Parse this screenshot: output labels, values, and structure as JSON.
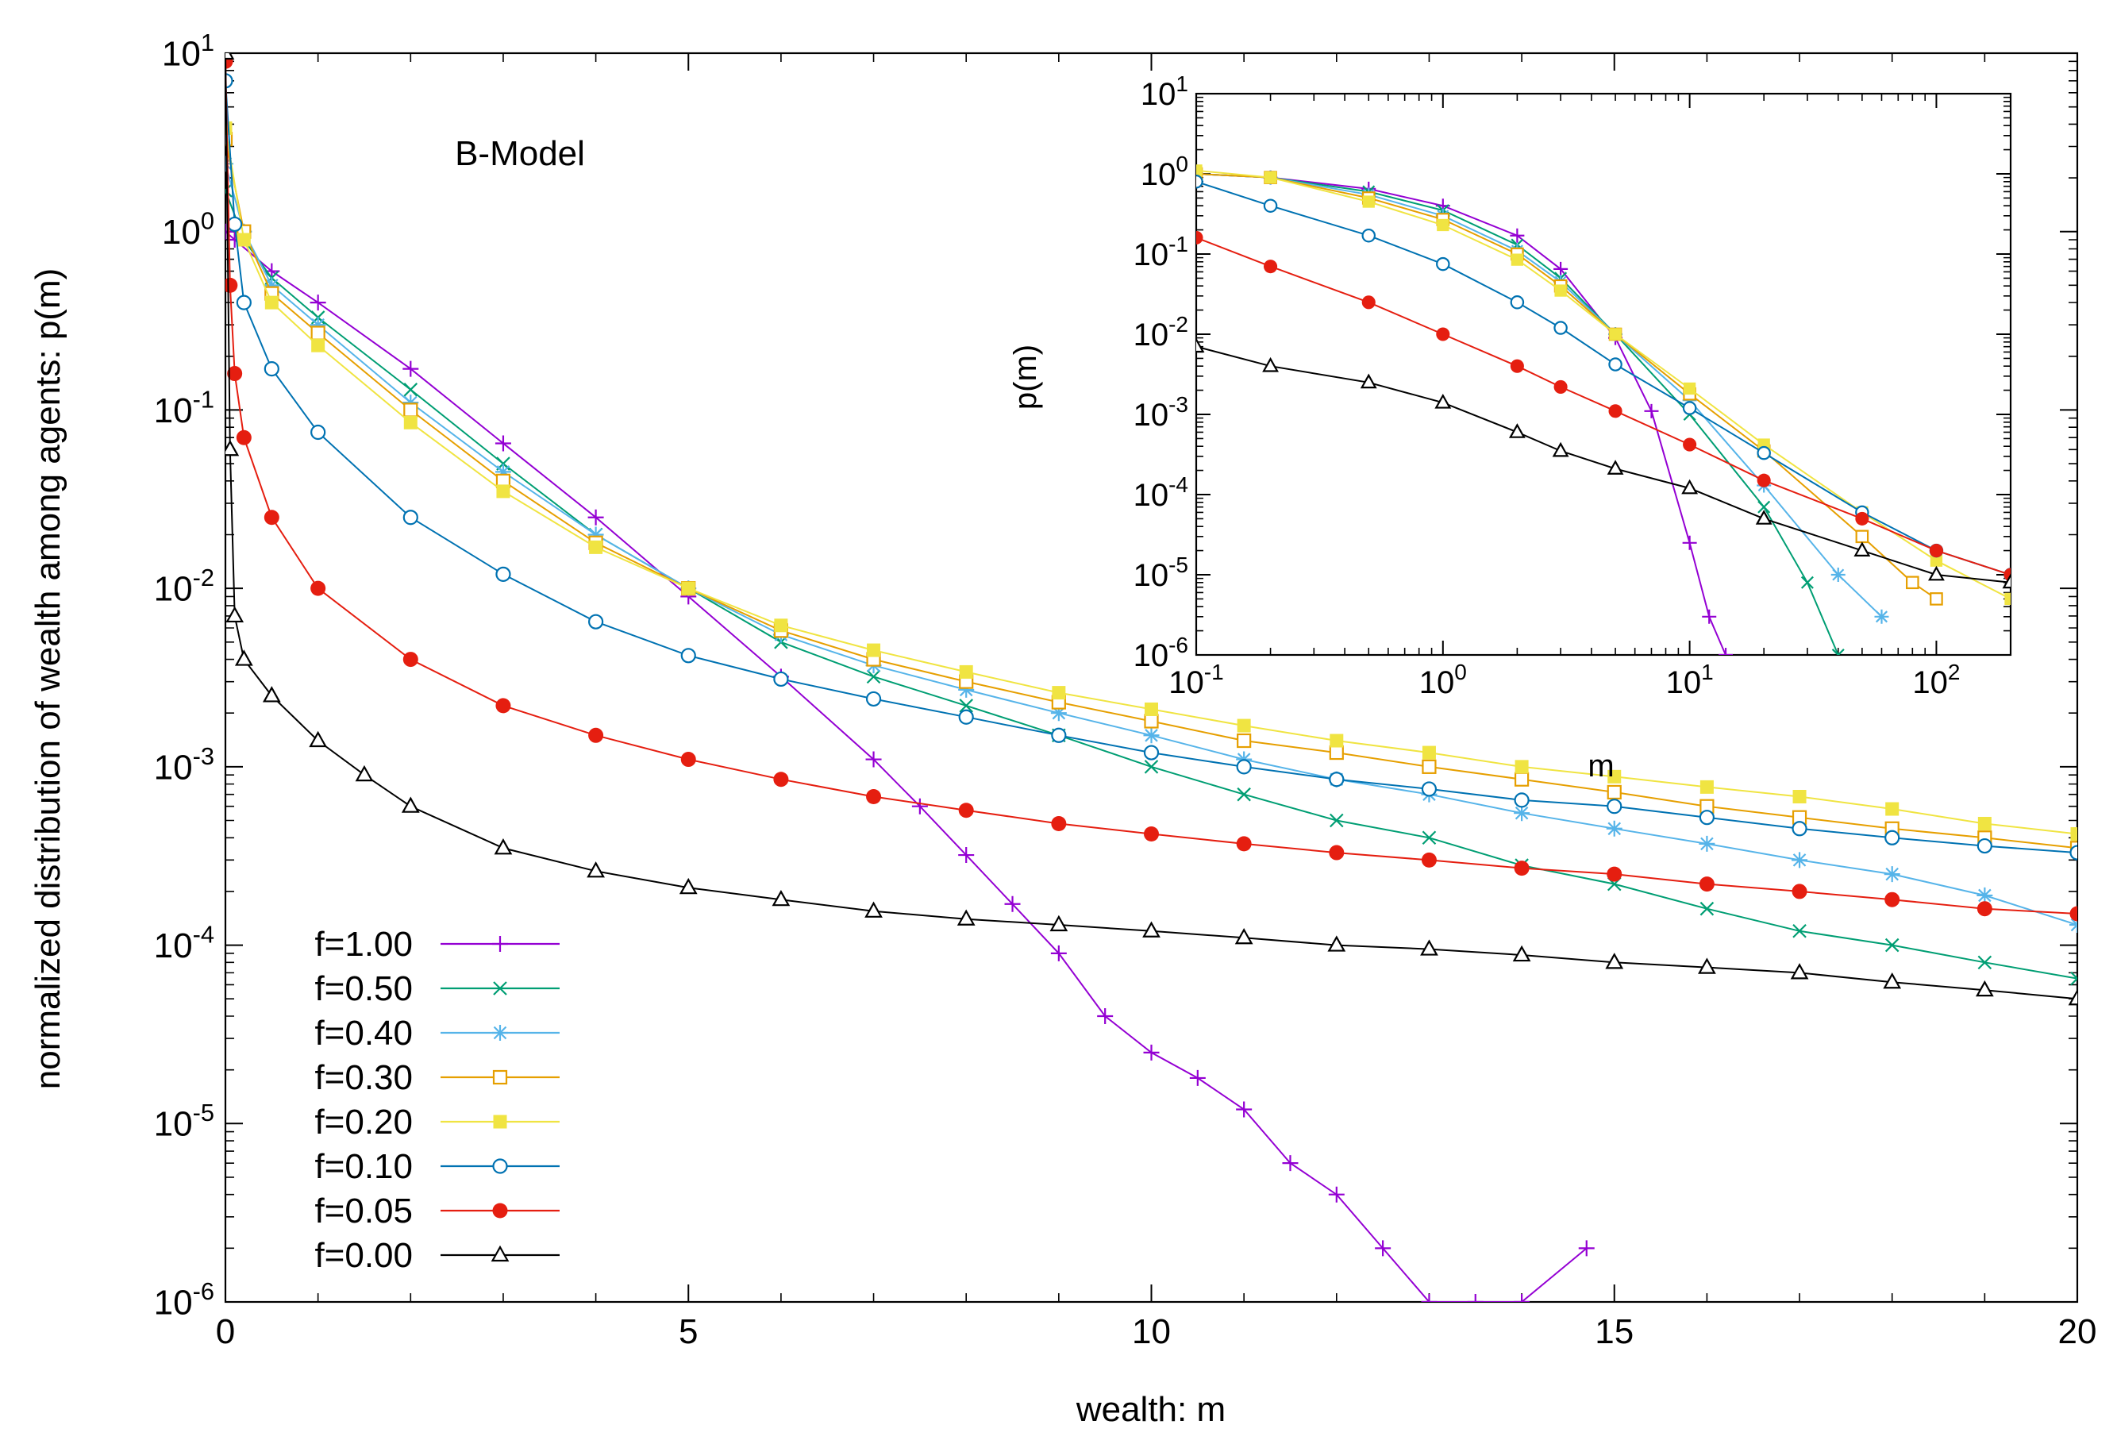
{
  "chart_data": [
    {
      "type": "line",
      "title": "",
      "annotation": "B-Model",
      "xlabel": "wealth: m",
      "ylabel": "normalized distribution of wealth among agents: p(m)",
      "xscale": "linear",
      "yscale": "log",
      "xlim": [
        0,
        20
      ],
      "ylim": [
        1e-06,
        10
      ],
      "xticks": [
        "0",
        "5",
        "10",
        "15",
        "20"
      ],
      "yticks": [
        {
          "base": "10",
          "exp": "-6"
        },
        {
          "base": "10",
          "exp": "-5"
        },
        {
          "base": "10",
          "exp": "-4"
        },
        {
          "base": "10",
          "exp": "-3"
        },
        {
          "base": "10",
          "exp": "-2"
        },
        {
          "base": "10",
          "exp": "-1"
        },
        {
          "base": "10",
          "exp": "0"
        },
        {
          "base": "10",
          "exp": "1"
        }
      ],
      "grid": false,
      "legend_position": "bottom-left",
      "series": [
        {
          "name": "f=1.00",
          "color": "#9400d3",
          "marker": "plus",
          "x": [
            0,
            0.1,
            0.5,
            1,
            2,
            3,
            4,
            5,
            6,
            7,
            7.5,
            8,
            8.5,
            9,
            9.5,
            10,
            10.5,
            11,
            11.5,
            12,
            12.5,
            13,
            13.5,
            14,
            14.7
          ],
          "y": [
            1.0,
            0.9,
            0.6,
            0.4,
            0.17,
            0.065,
            0.025,
            0.009,
            0.0032,
            0.0011,
            0.0006,
            0.00032,
            0.00017,
            9e-05,
            4e-05,
            2.5e-05,
            1.8e-05,
            1.2e-05,
            6e-06,
            4e-06,
            2e-06,
            1e-06,
            1e-06,
            1e-06,
            2e-06
          ]
        },
        {
          "name": "f=0.50",
          "color": "#009e73",
          "marker": "x",
          "x": [
            0,
            0.2,
            0.5,
            1,
            2,
            3,
            4,
            5,
            6,
            7,
            8,
            9,
            10,
            11,
            12,
            13,
            14,
            15,
            16,
            17,
            18,
            19,
            20
          ],
          "y": [
            1.7,
            0.9,
            0.55,
            0.33,
            0.13,
            0.05,
            0.02,
            0.01,
            0.005,
            0.0032,
            0.0022,
            0.0015,
            0.001,
            0.0007,
            0.0005,
            0.0004,
            0.00028,
            0.00022,
            0.00016,
            0.00012,
            0.0001,
            8e-05,
            6.5e-05
          ]
        },
        {
          "name": "f=0.40",
          "color": "#56b4e9",
          "marker": "star",
          "x": [
            0,
            0.2,
            0.5,
            1,
            2,
            3,
            4,
            5,
            6,
            7,
            8,
            9,
            10,
            11,
            12,
            13,
            14,
            15,
            16,
            17,
            18,
            19,
            20
          ],
          "y": [
            2.4,
            1.0,
            0.5,
            0.3,
            0.11,
            0.045,
            0.02,
            0.01,
            0.0055,
            0.0037,
            0.0027,
            0.002,
            0.0015,
            0.0011,
            0.00085,
            0.0007,
            0.00055,
            0.00045,
            0.00037,
            0.0003,
            0.00025,
            0.00019,
            0.00013
          ]
        },
        {
          "name": "f=0.30",
          "color": "#e69f00",
          "marker": "open-square",
          "x": [
            0,
            0.2,
            0.5,
            1,
            2,
            3,
            4,
            5,
            6,
            7,
            8,
            9,
            10,
            11,
            12,
            13,
            14,
            15,
            16,
            17,
            18,
            19,
            20
          ],
          "y": [
            3.3,
            1.0,
            0.45,
            0.27,
            0.1,
            0.04,
            0.018,
            0.01,
            0.0058,
            0.004,
            0.003,
            0.0023,
            0.0018,
            0.0014,
            0.0012,
            0.001,
            0.00085,
            0.00072,
            0.0006,
            0.00052,
            0.00045,
            0.0004,
            0.00035
          ]
        },
        {
          "name": "f=0.20",
          "color": "#f0e442",
          "marker": "filled-square",
          "x": [
            0,
            0.2,
            0.5,
            1,
            2,
            3,
            4,
            5,
            6,
            7,
            8,
            9,
            10,
            11,
            12,
            13,
            14,
            15,
            16,
            17,
            18,
            19,
            20
          ],
          "y": [
            3.8,
            0.9,
            0.4,
            0.23,
            0.085,
            0.035,
            0.017,
            0.01,
            0.0062,
            0.0045,
            0.0034,
            0.0026,
            0.0021,
            0.0017,
            0.0014,
            0.0012,
            0.001,
            0.00088,
            0.00077,
            0.00068,
            0.00058,
            0.00048,
            0.00042
          ]
        },
        {
          "name": "f=0.10",
          "color": "#0072b2",
          "marker": "open-circle",
          "x": [
            0,
            0.1,
            0.2,
            0.5,
            1,
            2,
            3,
            4,
            5,
            6,
            7,
            8,
            9,
            10,
            11,
            12,
            13,
            14,
            15,
            16,
            17,
            18,
            19,
            20
          ],
          "y": [
            7,
            1.1,
            0.4,
            0.17,
            0.075,
            0.025,
            0.012,
            0.0065,
            0.0042,
            0.0031,
            0.0024,
            0.0019,
            0.0015,
            0.0012,
            0.001,
            0.00085,
            0.00075,
            0.00065,
            0.0006,
            0.00052,
            0.00045,
            0.0004,
            0.00036,
            0.00033
          ]
        },
        {
          "name": "f=0.05",
          "color": "#e51e10",
          "marker": "filled-circle",
          "x": [
            0,
            0.05,
            0.1,
            0.2,
            0.5,
            1,
            2,
            3,
            4,
            5,
            6,
            7,
            8,
            9,
            10,
            11,
            12,
            13,
            14,
            15,
            16,
            17,
            18,
            19,
            20
          ],
          "y": [
            9,
            0.5,
            0.16,
            0.07,
            0.025,
            0.01,
            0.004,
            0.0022,
            0.0015,
            0.0011,
            0.00085,
            0.00068,
            0.00057,
            0.00048,
            0.00042,
            0.00037,
            0.00033,
            0.0003,
            0.00027,
            0.00025,
            0.00022,
            0.0002,
            0.00018,
            0.00016,
            0.00015
          ]
        },
        {
          "name": "f=0.00",
          "color": "#000000",
          "marker": "open-triangle",
          "x": [
            0,
            0.05,
            0.1,
            0.2,
            0.5,
            1,
            1.5,
            2,
            3,
            4,
            5,
            6,
            7,
            8,
            9,
            10,
            11,
            12,
            13,
            14,
            15,
            16,
            17,
            18,
            19,
            20
          ],
          "y": [
            10,
            0.06,
            0.007,
            0.004,
            0.0025,
            0.0014,
            0.0009,
            0.0006,
            0.00035,
            0.00026,
            0.00021,
            0.00018,
            0.000155,
            0.00014,
            0.00013,
            0.00012,
            0.00011,
            0.0001,
            9.5e-05,
            8.8e-05,
            8e-05,
            7.5e-05,
            7e-05,
            6.2e-05,
            5.6e-05,
            5e-05
          ]
        }
      ]
    },
    {
      "type": "line",
      "title": "",
      "xlabel": "m",
      "ylabel": "p(m)",
      "xscale": "log",
      "yscale": "log",
      "xlim": [
        0.1,
        200
      ],
      "ylim": [
        1e-06,
        10
      ],
      "xticks": [
        {
          "base": "10",
          "exp": "-1"
        },
        {
          "base": "10",
          "exp": "0"
        },
        {
          "base": "10",
          "exp": "1"
        },
        {
          "base": "10",
          "exp": "2"
        }
      ],
      "yticks": [
        {
          "base": "10",
          "exp": "-6"
        },
        {
          "base": "10",
          "exp": "-5"
        },
        {
          "base": "10",
          "exp": "-4"
        },
        {
          "base": "10",
          "exp": "-3"
        },
        {
          "base": "10",
          "exp": "-2"
        },
        {
          "base": "10",
          "exp": "-1"
        },
        {
          "base": "10",
          "exp": "0"
        },
        {
          "base": "10",
          "exp": "1"
        }
      ],
      "grid": false,
      "series": [
        {
          "color": "#9400d3",
          "marker": "plus",
          "x": [
            0.1,
            0.2,
            0.5,
            1,
            2,
            3,
            5,
            7,
            10,
            12,
            14
          ],
          "y": [
            1.0,
            0.9,
            0.65,
            0.4,
            0.17,
            0.065,
            0.009,
            0.0011,
            2.5e-05,
            3e-06,
            1e-06
          ]
        },
        {
          "color": "#009e73",
          "marker": "x",
          "x": [
            0.1,
            0.2,
            0.5,
            1,
            2,
            3,
            5,
            10,
            20,
            30,
            40
          ],
          "y": [
            1.0,
            0.9,
            0.6,
            0.35,
            0.13,
            0.05,
            0.01,
            0.001,
            7e-05,
            8e-06,
            1e-06
          ]
        },
        {
          "color": "#56b4e9",
          "marker": "star",
          "x": [
            0.1,
            0.2,
            0.5,
            1,
            2,
            3,
            5,
            10,
            20,
            40,
            60
          ],
          "y": [
            1.0,
            0.9,
            0.55,
            0.3,
            0.11,
            0.045,
            0.01,
            0.0015,
            0.00013,
            1e-05,
            3e-06
          ]
        },
        {
          "color": "#e69f00",
          "marker": "open-square",
          "x": [
            0.1,
            0.2,
            0.5,
            1,
            2,
            3,
            5,
            10,
            20,
            50,
            80,
            100
          ],
          "y": [
            1.0,
            0.9,
            0.5,
            0.27,
            0.1,
            0.04,
            0.01,
            0.0018,
            0.00035,
            3e-05,
            8e-06,
            5e-06
          ]
        },
        {
          "color": "#f0e442",
          "marker": "filled-square",
          "x": [
            0.1,
            0.2,
            0.5,
            1,
            2,
            3,
            5,
            10,
            20,
            50,
            100,
            200
          ],
          "y": [
            1.1,
            0.9,
            0.45,
            0.23,
            0.085,
            0.035,
            0.01,
            0.0021,
            0.00042,
            6e-05,
            1.5e-05,
            5e-06
          ]
        },
        {
          "color": "#0072b2",
          "marker": "open-circle",
          "x": [
            0.1,
            0.2,
            0.5,
            1,
            2,
            3,
            5,
            10,
            20,
            50,
            100,
            200
          ],
          "y": [
            0.8,
            0.4,
            0.17,
            0.075,
            0.025,
            0.012,
            0.0042,
            0.0012,
            0.00033,
            6e-05,
            2e-05,
            1e-05
          ]
        },
        {
          "color": "#e51e10",
          "marker": "filled-circle",
          "x": [
            0.1,
            0.2,
            0.5,
            1,
            2,
            3,
            5,
            10,
            20,
            50,
            100,
            200
          ],
          "y": [
            0.16,
            0.07,
            0.025,
            0.01,
            0.004,
            0.0022,
            0.0011,
            0.00042,
            0.00015,
            5e-05,
            2e-05,
            1e-05
          ]
        },
        {
          "color": "#000000",
          "marker": "open-triangle",
          "x": [
            0.1,
            0.2,
            0.5,
            1,
            2,
            3,
            5,
            10,
            20,
            50,
            100,
            200
          ],
          "y": [
            0.007,
            0.004,
            0.0025,
            0.0014,
            0.0006,
            0.00035,
            0.00021,
            0.00012,
            5e-05,
            2e-05,
            1e-05,
            8e-06
          ]
        }
      ]
    }
  ]
}
